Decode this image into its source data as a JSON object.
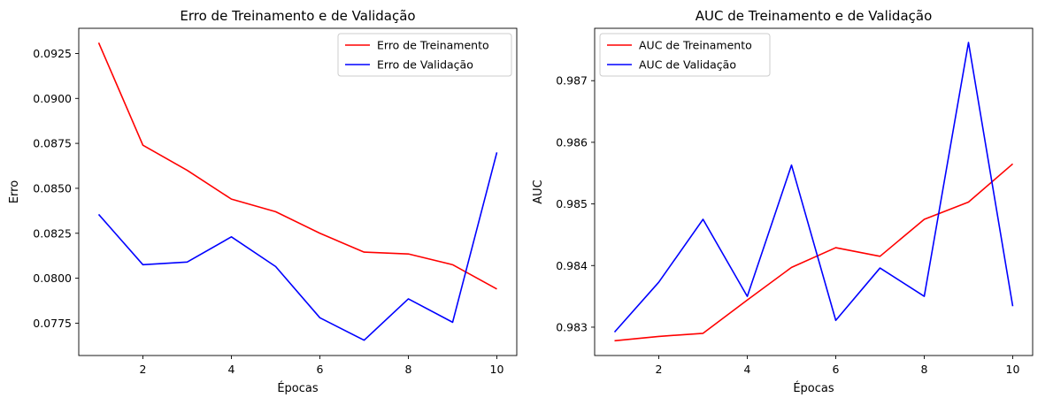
{
  "chart_data": [
    {
      "type": "line",
      "title": "Erro de Treinamento e de Validação",
      "xlabel": "Épocas",
      "ylabel": "Erro",
      "x": [
        1,
        2,
        3,
        4,
        5,
        6,
        7,
        8,
        9,
        10
      ],
      "xticks": [
        2,
        4,
        6,
        8,
        10
      ],
      "xlim": [
        0.55,
        10.45
      ],
      "ylim": [
        0.0757,
        0.0939
      ],
      "yticks": [
        0.0775,
        0.08,
        0.0825,
        0.085,
        0.0875,
        0.09,
        0.0925
      ],
      "ytick_labels": [
        "0.0775",
        "0.0800",
        "0.0825",
        "0.0850",
        "0.0875",
        "0.0900",
        "0.0925"
      ],
      "grid": false,
      "legend_position": "top-right",
      "series": [
        {
          "name": "Erro de Treinamento",
          "color": "#ff0000",
          "values": [
            0.0931,
            0.0874,
            0.086,
            0.0844,
            0.0837,
            0.0825,
            0.08145,
            0.08135,
            0.08075,
            0.0794
          ]
        },
        {
          "name": "Erro de Validação",
          "color": "#0000ff",
          "values": [
            0.08355,
            0.08075,
            0.0809,
            0.0823,
            0.08065,
            0.0778,
            0.07655,
            0.07885,
            0.07755,
            0.087
          ]
        }
      ]
    },
    {
      "type": "line",
      "title": "AUC de Treinamento e de Validação",
      "xlabel": "Épocas",
      "ylabel": "AUC",
      "x": [
        1,
        2,
        3,
        4,
        5,
        6,
        7,
        8,
        9,
        10
      ],
      "xticks": [
        2,
        4,
        6,
        8,
        10
      ],
      "xlim": [
        0.55,
        10.45
      ],
      "ylim": [
        0.98254,
        0.98785
      ],
      "yticks": [
        0.983,
        0.984,
        0.985,
        0.986,
        0.987
      ],
      "ytick_labels": [
        "0.983",
        "0.984",
        "0.985",
        "0.986",
        "0.987"
      ],
      "grid": false,
      "legend_position": "top-left",
      "series": [
        {
          "name": "AUC de Treinamento",
          "color": "#ff0000",
          "values": [
            0.98278,
            0.98285,
            0.9829,
            0.98344,
            0.98397,
            0.98429,
            0.98415,
            0.98475,
            0.98503,
            0.98565
          ]
        },
        {
          "name": "AUC de Validação",
          "color": "#0000ff",
          "values": [
            0.98292,
            0.98373,
            0.98475,
            0.9835,
            0.98563,
            0.98311,
            0.98396,
            0.9835,
            0.98762,
            0.98334
          ]
        }
      ]
    }
  ]
}
